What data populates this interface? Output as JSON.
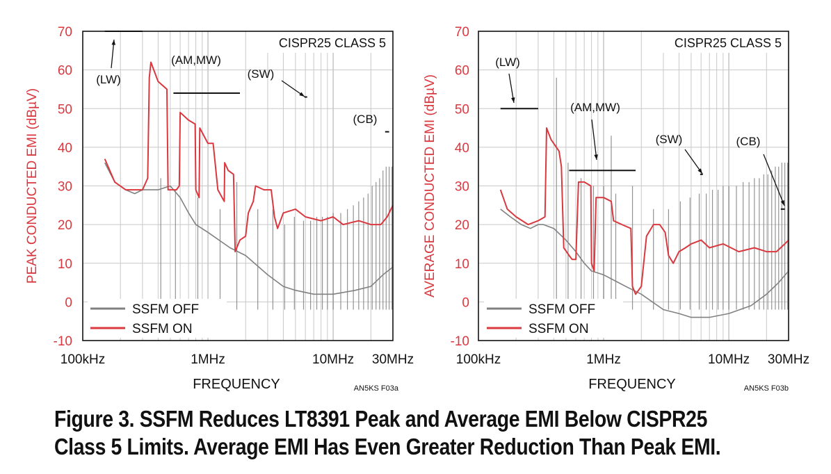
{
  "caption": {
    "line1": "Figure 3. SSFM Reduces LT8391 Peak and Average EMI Below CISPR25",
    "line2": "Class 5 Limits. Average EMI Has Even Greater Reduction Than Peak EMI."
  },
  "colors": {
    "ssfm_off": "#808080",
    "ssfm_on": "#d9383f",
    "axis_label": "#d9383f",
    "grid": "#c8c8c8",
    "limit": "#111111"
  },
  "chart_data": [
    {
      "id": "peak",
      "type": "line",
      "title": "CISPR25 CLASS 5",
      "ylabel": "PEAK CONDUCTED EMI (dBµV)",
      "xlabel": "FREQUENCY",
      "code": "AN5KS F03a",
      "xscale": "log",
      "xlim": [
        100000,
        30000000
      ],
      "ylim": [
        -10,
        70
      ],
      "yticks": [
        -10,
        0,
        10,
        20,
        30,
        40,
        50,
        60,
        70
      ],
      "xtick_labels": [
        {
          "f": 100000,
          "label": "100kHz"
        },
        {
          "f": 1000000,
          "label": "1MHz"
        },
        {
          "f": 10000000,
          "label": "10MHz"
        },
        {
          "f": 30000000,
          "label": "30MHz"
        }
      ],
      "legend": [
        {
          "name": "SSFM OFF"
        },
        {
          "name": "SSFM ON"
        }
      ],
      "limits": [
        {
          "name": "(LW)",
          "f1": 150000,
          "f2": 300000,
          "y": 70
        },
        {
          "name": "(AM,MW)",
          "f1": 530000,
          "f2": 1800000,
          "y": 54
        },
        {
          "name": "(SW)",
          "f1": 5900000,
          "f2": 6200000,
          "y": 53
        },
        {
          "name": "(CB)",
          "f1": 26000000,
          "f2": 28000000,
          "y": 44
        }
      ],
      "series": [
        {
          "name": "SSFM OFF",
          "points": [
            [
              150000,
              36
            ],
            [
              180000,
              31
            ],
            [
              220000,
              29
            ],
            [
              260000,
              28
            ],
            [
              300000,
              29
            ],
            [
              400000,
              29
            ],
            [
              500000,
              30
            ],
            [
              600000,
              27
            ],
            [
              700000,
              23
            ],
            [
              800000,
              20
            ],
            [
              1000000,
              18
            ],
            [
              1500000,
              14
            ],
            [
              2000000,
              12
            ],
            [
              3000000,
              7
            ],
            [
              4000000,
              4
            ],
            [
              5000000,
              3
            ],
            [
              7000000,
              2
            ],
            [
              10000000,
              2
            ],
            [
              15000000,
              3
            ],
            [
              20000000,
              4
            ],
            [
              25000000,
              7
            ],
            [
              30000000,
              9
            ]
          ]
        },
        {
          "name": "SSFM ON",
          "points": [
            [
              150000,
              37
            ],
            [
              180000,
              31
            ],
            [
              220000,
              29
            ],
            [
              260000,
              29
            ],
            [
              300000,
              29
            ],
            [
              330000,
              32
            ],
            [
              340000,
              58
            ],
            [
              350000,
              62
            ],
            [
              400000,
              57
            ],
            [
              470000,
              55
            ],
            [
              480000,
              29
            ],
            [
              560000,
              29
            ],
            [
              590000,
              30
            ],
            [
              600000,
              49
            ],
            [
              700000,
              47
            ],
            [
              790000,
              46
            ],
            [
              800000,
              29
            ],
            [
              850000,
              27
            ],
            [
              860000,
              45
            ],
            [
              1000000,
              41
            ],
            [
              1100000,
              41
            ],
            [
              1200000,
              29
            ],
            [
              1350000,
              26
            ],
            [
              1360000,
              36
            ],
            [
              1450000,
              34
            ],
            [
              1600000,
              33
            ],
            [
              1650000,
              13
            ],
            [
              1800000,
              16
            ],
            [
              2000000,
              17
            ],
            [
              2100000,
              23
            ],
            [
              2300000,
              26
            ],
            [
              2400000,
              30
            ],
            [
              2800000,
              29
            ],
            [
              3200000,
              29
            ],
            [
              3400000,
              22
            ],
            [
              3600000,
              19
            ],
            [
              4000000,
              23
            ],
            [
              5000000,
              24
            ],
            [
              6000000,
              22
            ],
            [
              8000000,
              21
            ],
            [
              10000000,
              22
            ],
            [
              12000000,
              20
            ],
            [
              16000000,
              21
            ],
            [
              20000000,
              20
            ],
            [
              24000000,
              20
            ],
            [
              27000000,
              22
            ],
            [
              30000000,
              25
            ]
          ]
        }
      ],
      "spurs": [
        {
          "f": 420000,
          "y": 32
        },
        {
          "f": 550000,
          "y": 29
        },
        {
          "f": 830000,
          "y": 27
        },
        {
          "f": 1250000,
          "y": 24
        },
        {
          "f": 1700000,
          "y": 31
        },
        {
          "f": 2500000,
          "y": 24
        },
        {
          "f": 3300000,
          "y": 24
        },
        {
          "f": 4100000,
          "y": 20
        },
        {
          "f": 4900000,
          "y": 22
        },
        {
          "f": 5800000,
          "y": 21
        },
        {
          "f": 6600000,
          "y": 21
        },
        {
          "f": 7400000,
          "y": 22
        },
        {
          "f": 8200000,
          "y": 22
        },
        {
          "f": 9000000,
          "y": 22
        },
        {
          "f": 10000000,
          "y": 23
        },
        {
          "f": 11500000,
          "y": 23
        },
        {
          "f": 13000000,
          "y": 24
        },
        {
          "f": 14500000,
          "y": 25
        },
        {
          "f": 16000000,
          "y": 26
        },
        {
          "f": 17500000,
          "y": 27
        },
        {
          "f": 19000000,
          "y": 28
        },
        {
          "f": 20500000,
          "y": 30
        },
        {
          "f": 22000000,
          "y": 31
        },
        {
          "f": 23500000,
          "y": 32
        },
        {
          "f": 25000000,
          "y": 34
        },
        {
          "f": 26500000,
          "y": 35
        },
        {
          "f": 28000000,
          "y": 35
        },
        {
          "f": 29500000,
          "y": 35
        }
      ]
    },
    {
      "id": "average",
      "type": "line",
      "title": "CISPR25 CLASS 5",
      "ylabel": "AVERAGE CONDUCTED EMI (dBµV)",
      "xlabel": "FREQUENCY",
      "code": "AN5KS F03b",
      "xscale": "log",
      "xlim": [
        100000,
        30000000
      ],
      "ylim": [
        -10,
        70
      ],
      "yticks": [
        -10,
        0,
        10,
        20,
        30,
        40,
        50,
        60,
        70
      ],
      "xtick_labels": [
        {
          "f": 100000,
          "label": "100kHz"
        },
        {
          "f": 1000000,
          "label": "1MHz"
        },
        {
          "f": 10000000,
          "label": "10MHz"
        },
        {
          "f": 30000000,
          "label": "30MHz"
        }
      ],
      "legend": [
        {
          "name": "SSFM OFF"
        },
        {
          "name": "SSFM ON"
        }
      ],
      "limits": [
        {
          "name": "(LW)",
          "f1": 150000,
          "f2": 300000,
          "y": 50
        },
        {
          "name": "(AM,MW)",
          "f1": 530000,
          "f2": 1800000,
          "y": 34
        },
        {
          "name": "(SW)",
          "f1": 5900000,
          "f2": 6200000,
          "y": 33
        },
        {
          "name": "(CB)",
          "f1": 26000000,
          "f2": 28000000,
          "y": 24
        }
      ],
      "series": [
        {
          "name": "SSFM OFF",
          "points": [
            [
              150000,
              24
            ],
            [
              180000,
              22
            ],
            [
              220000,
              20
            ],
            [
              260000,
              19
            ],
            [
              300000,
              20
            ],
            [
              330000,
              20
            ],
            [
              400000,
              19
            ],
            [
              500000,
              16
            ],
            [
              600000,
              13
            ],
            [
              700000,
              10
            ],
            [
              800000,
              8
            ],
            [
              1000000,
              7
            ],
            [
              1500000,
              4
            ],
            [
              2000000,
              2
            ],
            [
              3000000,
              -2
            ],
            [
              4000000,
              -3
            ],
            [
              5000000,
              -4
            ],
            [
              7000000,
              -4
            ],
            [
              10000000,
              -3
            ],
            [
              15000000,
              -1
            ],
            [
              20000000,
              2
            ],
            [
              25000000,
              5
            ],
            [
              30000000,
              8
            ]
          ]
        },
        {
          "name": "SSFM ON",
          "points": [
            [
              150000,
              29
            ],
            [
              170000,
              24
            ],
            [
              200000,
              22
            ],
            [
              250000,
              20
            ],
            [
              300000,
              21
            ],
            [
              340000,
              22
            ],
            [
              350000,
              45
            ],
            [
              380000,
              42
            ],
            [
              440000,
              39
            ],
            [
              460000,
              35
            ],
            [
              480000,
              14
            ],
            [
              530000,
              12
            ],
            [
              560000,
              11
            ],
            [
              600000,
              11
            ],
            [
              630000,
              31
            ],
            [
              700000,
              31
            ],
            [
              790000,
              30
            ],
            [
              800000,
              10
            ],
            [
              840000,
              8
            ],
            [
              870000,
              27
            ],
            [
              1000000,
              27
            ],
            [
              1150000,
              26
            ],
            [
              1200000,
              21
            ],
            [
              1400000,
              20
            ],
            [
              1650000,
              19
            ],
            [
              1700000,
              4
            ],
            [
              1800000,
              2
            ],
            [
              2000000,
              4
            ],
            [
              2200000,
              17
            ],
            [
              2500000,
              20
            ],
            [
              2800000,
              20
            ],
            [
              3100000,
              18
            ],
            [
              3300000,
              12
            ],
            [
              3600000,
              10
            ],
            [
              4000000,
              13
            ],
            [
              4500000,
              14
            ],
            [
              5000000,
              15
            ],
            [
              6000000,
              16
            ],
            [
              7000000,
              14
            ],
            [
              9000000,
              15
            ],
            [
              12000000,
              13
            ],
            [
              16000000,
              14
            ],
            [
              20000000,
              13
            ],
            [
              24000000,
              13
            ],
            [
              28000000,
              15
            ],
            [
              30000000,
              16
            ]
          ]
        }
      ],
      "spurs": [
        {
          "f": 420000,
          "y": 58
        },
        {
          "f": 520000,
          "y": 36
        },
        {
          "f": 660000,
          "y": 32
        },
        {
          "f": 830000,
          "y": 30
        },
        {
          "f": 1000000,
          "y": 30
        },
        {
          "f": 1150000,
          "y": 43
        },
        {
          "f": 1250000,
          "y": 28
        },
        {
          "f": 1700000,
          "y": 30
        },
        {
          "f": 2500000,
          "y": 24
        },
        {
          "f": 3300000,
          "y": 24
        },
        {
          "f": 4100000,
          "y": 26
        },
        {
          "f": 4900000,
          "y": 27
        },
        {
          "f": 5800000,
          "y": 28
        },
        {
          "f": 6600000,
          "y": 28
        },
        {
          "f": 7400000,
          "y": 29
        },
        {
          "f": 8200000,
          "y": 29
        },
        {
          "f": 9000000,
          "y": 30
        },
        {
          "f": 10000000,
          "y": 30
        },
        {
          "f": 11500000,
          "y": 30
        },
        {
          "f": 13000000,
          "y": 31
        },
        {
          "f": 14500000,
          "y": 31
        },
        {
          "f": 16000000,
          "y": 32
        },
        {
          "f": 17500000,
          "y": 32
        },
        {
          "f": 19000000,
          "y": 33
        },
        {
          "f": 20500000,
          "y": 33
        },
        {
          "f": 22000000,
          "y": 34
        },
        {
          "f": 23500000,
          "y": 35
        },
        {
          "f": 25000000,
          "y": 35
        },
        {
          "f": 26500000,
          "y": 36
        },
        {
          "f": 28000000,
          "y": 36
        },
        {
          "f": 29500000,
          "y": 36
        }
      ]
    }
  ]
}
